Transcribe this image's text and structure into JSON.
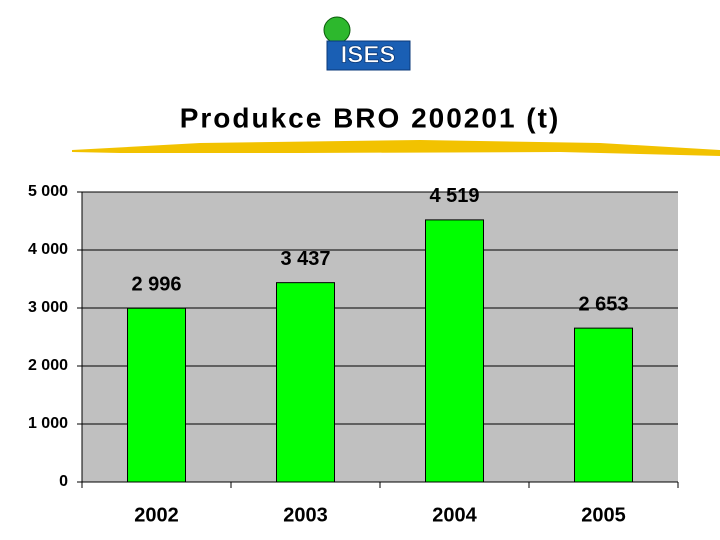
{
  "logo": "ISES",
  "chart_data": {
    "type": "bar",
    "title": "Produkce BRO 200201 (t)",
    "categories": [
      "2002",
      "2003",
      "2004",
      "2005"
    ],
    "values": [
      2996,
      3437,
      4519,
      2653
    ],
    "value_labels": [
      "2 996",
      "3 437",
      "4 519",
      "2 653"
    ],
    "color": "#00ff00",
    "ylim": [
      0,
      5000
    ],
    "yticks": [
      0,
      {
        "value": 1000,
        "label": "1 000"
      },
      {
        "value": 2000,
        "label": "2 000"
      },
      {
        "value": 3000,
        "label": "3 000"
      },
      {
        "value": 4000,
        "label": "4 000"
      },
      {
        "value": 5000,
        "label": "5 000"
      }
    ],
    "grid": true
  }
}
